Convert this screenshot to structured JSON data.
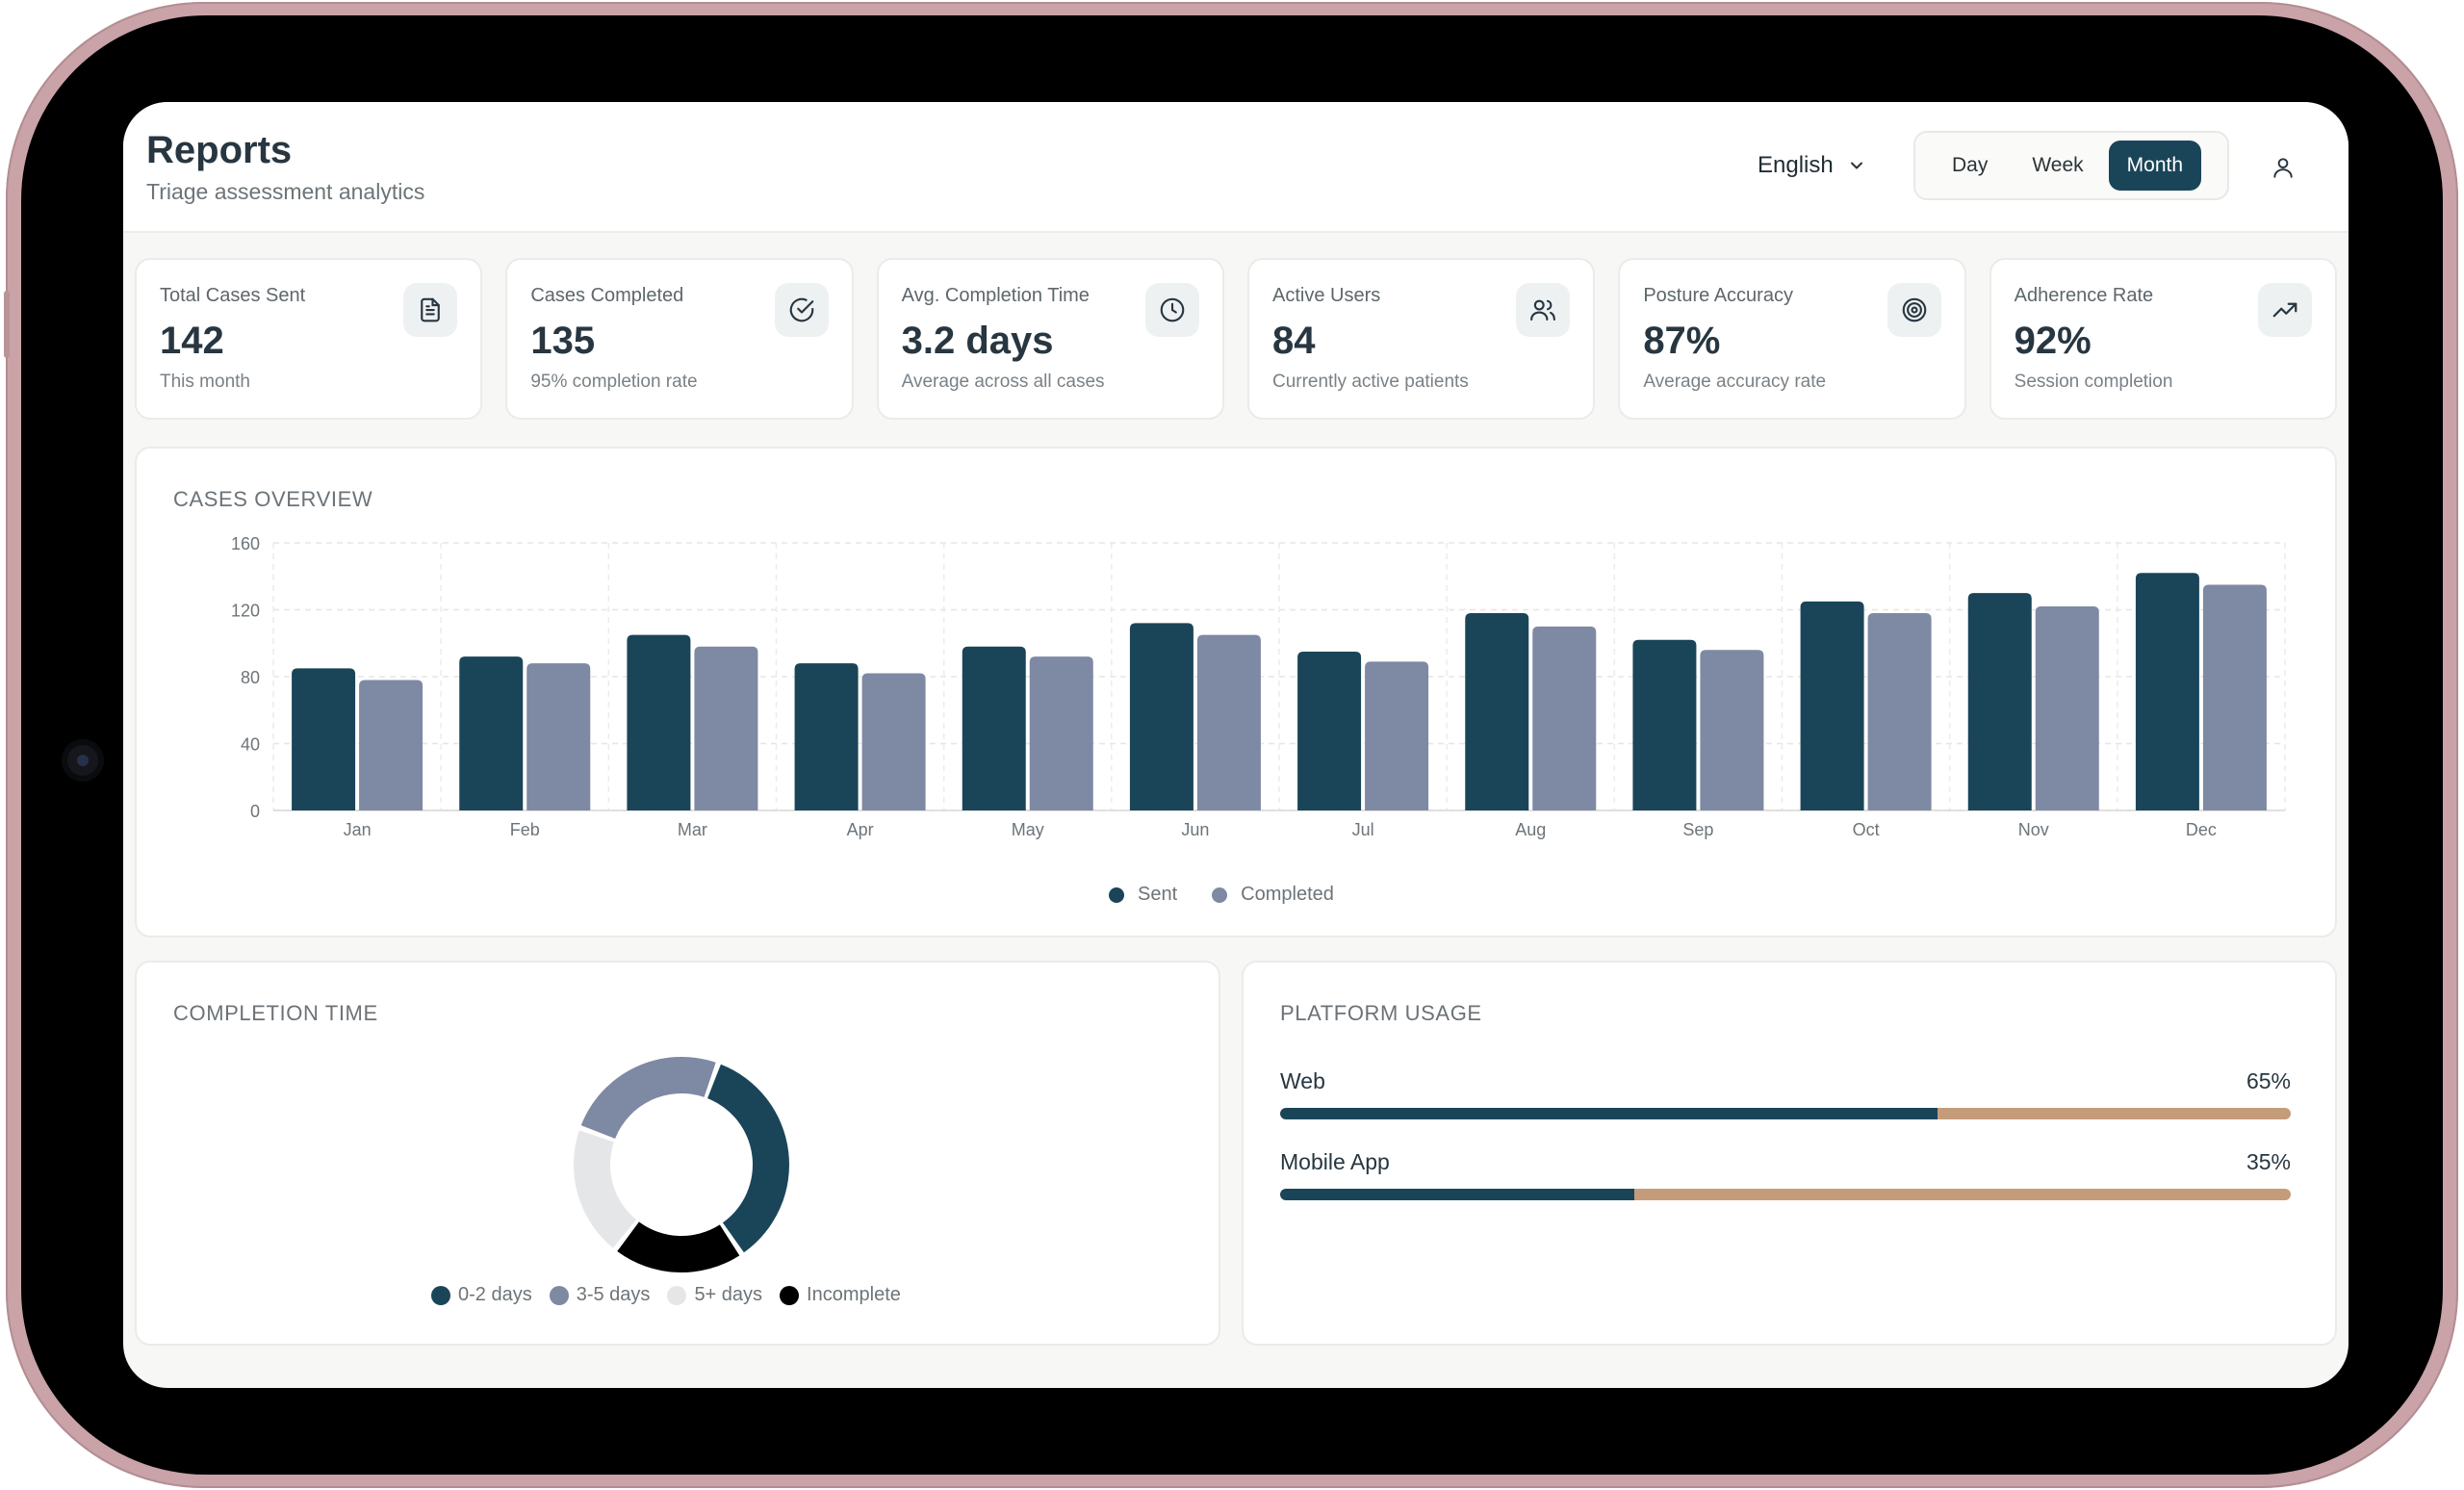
{
  "header": {
    "title": "Reports",
    "subtitle": "Triage assessment analytics",
    "language": "English",
    "range_options": [
      "Day",
      "Week",
      "Month"
    ],
    "range_selected": "Month"
  },
  "stats": [
    {
      "label": "Total Cases Sent",
      "value": "142",
      "sub": "This month",
      "icon": "document-icon"
    },
    {
      "label": "Cases Completed",
      "value": "135",
      "sub": "95% completion rate",
      "icon": "check-circle-icon"
    },
    {
      "label": "Avg. Completion Time",
      "value": "3.2 days",
      "sub": "Average across all cases",
      "icon": "clock-icon"
    },
    {
      "label": "Active Users",
      "value": "84",
      "sub": "Currently active patients",
      "icon": "users-icon"
    },
    {
      "label": "Posture Accuracy",
      "value": "87%",
      "sub": "Average accuracy rate",
      "icon": "target-icon"
    },
    {
      "label": "Adherence Rate",
      "value": "92%",
      "sub": "Session completion",
      "icon": "trending-up-icon"
    }
  ],
  "overview": {
    "title": "CASES OVERVIEW"
  },
  "completion": {
    "title": "COMPLETION TIME",
    "legend": [
      "0-2 days",
      "3-5 days",
      "5+ days",
      "Incomplete"
    ]
  },
  "platform": {
    "title": "PLATFORM USAGE",
    "rows": [
      {
        "label": "Web",
        "value": "65%",
        "fraction": 0.65
      },
      {
        "label": "Mobile App",
        "value": "35%",
        "fraction": 0.35
      }
    ]
  },
  "colors": {
    "primary": "#1a4559",
    "secondary": "#7e89a3",
    "light": "#e5e6e8",
    "dark": "#000000",
    "accent": "#c49c7a"
  },
  "chart_data": [
    {
      "type": "bar",
      "title": "CASES OVERVIEW",
      "categories": [
        "Jan",
        "Feb",
        "Mar",
        "Apr",
        "May",
        "Jun",
        "Jul",
        "Aug",
        "Sep",
        "Oct",
        "Nov",
        "Dec"
      ],
      "series": [
        {
          "name": "Sent",
          "values": [
            85,
            92,
            105,
            88,
            98,
            112,
            95,
            118,
            102,
            125,
            130,
            142
          ]
        },
        {
          "name": "Completed",
          "values": [
            78,
            88,
            98,
            82,
            92,
            105,
            89,
            110,
            96,
            118,
            122,
            135
          ]
        }
      ],
      "yticks": [
        "0",
        "40",
        "80",
        "120",
        "160"
      ],
      "ylim": [
        0,
        160
      ],
      "xlabel": "",
      "ylabel": "",
      "grid": true,
      "legend_position": "bottom-center"
    },
    {
      "type": "pie",
      "title": "COMPLETION TIME",
      "labels": [
        "0-2 days",
        "3-5 days",
        "5+ days",
        "Incomplete"
      ],
      "values": [
        35,
        25,
        20,
        20
      ],
      "donut": true
    }
  ]
}
